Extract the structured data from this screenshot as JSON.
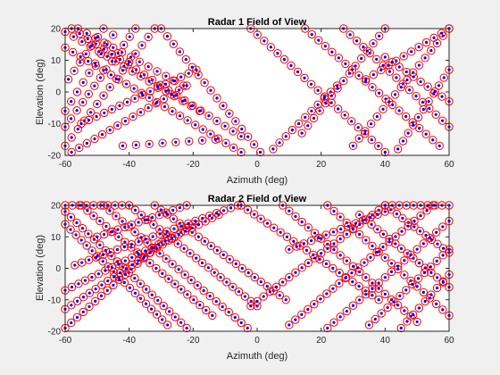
{
  "chart_data": [
    {
      "type": "scatter",
      "title": "Radar 1 Field of View",
      "xlabel": "Azimuth (deg)",
      "ylabel": "Elevation (deg)",
      "xlim": [
        -60,
        60
      ],
      "ylim": [
        -20,
        20
      ],
      "xticks": [
        -60,
        -40,
        -20,
        0,
        20,
        40,
        60
      ],
      "yticks": [
        -20,
        -10,
        0,
        10,
        20
      ],
      "grid": false,
      "marker_colors": {
        "circle": "#ff0000",
        "dot": "#0000ff"
      },
      "lines": [
        {
          "x0": -60,
          "y0": 14,
          "x1": -5,
          "y1": -19,
          "n": 24
        },
        {
          "x0": -58,
          "y0": 20,
          "x1": -5,
          "y1": -14,
          "n": 22
        },
        {
          "x0": -60,
          "y0": 19,
          "x1": -18,
          "y1": -6,
          "n": 17
        },
        {
          "x0": -56,
          "y0": 20,
          "x1": -23,
          "y1": 2,
          "n": 13
        },
        {
          "x0": -60,
          "y0": -17,
          "x1": -32,
          "y1": 20,
          "n": 15
        },
        {
          "x0": -60,
          "y0": -11,
          "x1": -38,
          "y1": 20,
          "n": 13
        },
        {
          "x0": -58,
          "y0": -19,
          "x1": -22,
          "y1": 2,
          "n": 16
        },
        {
          "x0": -55,
          "y0": -10,
          "x1": -19,
          "y1": 7,
          "n": 16
        },
        {
          "x0": -60,
          "y0": -6,
          "x1": -45,
          "y1": 18,
          "n": 9
        },
        {
          "x0": -59,
          "y0": 4,
          "x1": -48,
          "y1": 20,
          "n": 7
        },
        {
          "x0": -30,
          "y0": 20,
          "x1": 1,
          "y1": -19,
          "n": 17
        },
        {
          "x0": -2,
          "y0": 20,
          "x1": 40,
          "y1": -19,
          "n": 21
        },
        {
          "x0": 15,
          "y0": 20,
          "x1": 57,
          "y1": -17,
          "n": 21
        },
        {
          "x0": 27,
          "y0": 20,
          "x1": 60,
          "y1": -11,
          "n": 17
        },
        {
          "x0": 5,
          "y0": -18,
          "x1": 25,
          "y1": 2,
          "n": 11
        },
        {
          "x0": 14,
          "y0": -13,
          "x1": 40,
          "y1": 20,
          "n": 15
        },
        {
          "x0": 30,
          "y0": -17,
          "x1": 60,
          "y1": 20,
          "n": 17
        },
        {
          "x0": 44,
          "y0": -18,
          "x1": 60,
          "y1": 7,
          "n": 11
        },
        {
          "x0": 34,
          "y0": 4,
          "x1": 60,
          "y1": 20,
          "n": 12
        },
        {
          "x0": 40,
          "y0": 11,
          "x1": 60,
          "y1": -3,
          "n": 10
        },
        {
          "x0": -42,
          "y0": -17,
          "x1": -13,
          "y1": -15,
          "n": 8
        }
      ]
    },
    {
      "type": "scatter",
      "title": "Radar 2 Field of View",
      "xlabel": "Azimuth (deg)",
      "ylabel": "Elevation (deg)",
      "xlim": [
        -60,
        60
      ],
      "ylim": [
        -20,
        20
      ],
      "xticks": [
        -60,
        -40,
        -20,
        0,
        20,
        40,
        60
      ],
      "yticks": [
        -20,
        -10,
        0,
        10,
        20
      ],
      "grid": false,
      "marker_colors": {
        "circle": "#ff0000",
        "dot": "#0000ff"
      },
      "lines": [
        {
          "x0": -60,
          "y0": 18,
          "x1": -22,
          "y1": -19,
          "n": 22
        },
        {
          "x0": -60,
          "y0": 14,
          "x1": -28,
          "y1": -18,
          "n": 20
        },
        {
          "x0": -55,
          "y0": 20,
          "x1": -14,
          "y1": -15,
          "n": 22
        },
        {
          "x0": -48,
          "y0": 20,
          "x1": -3,
          "y1": -19,
          "n": 24
        },
        {
          "x0": -40,
          "y0": 20,
          "x1": 0,
          "y1": -12,
          "n": 22
        },
        {
          "x0": -32,
          "y0": 20,
          "x1": 9,
          "y1": -10,
          "n": 22
        },
        {
          "x0": -60,
          "y0": -19,
          "x1": -28,
          "y1": 10,
          "n": 18
        },
        {
          "x0": -60,
          "y0": -13,
          "x1": -20,
          "y1": 14,
          "n": 22
        },
        {
          "x0": -60,
          "y0": -7,
          "x1": -12,
          "y1": 17,
          "n": 24
        },
        {
          "x0": -57,
          "y0": 1,
          "x1": -6,
          "y1": 20,
          "n": 24
        },
        {
          "x0": -50,
          "y0": 10,
          "x1": -22,
          "y1": 20,
          "n": 14
        },
        {
          "x0": -60,
          "y0": 20,
          "x1": -40,
          "y1": 20,
          "n": 10
        },
        {
          "x0": -5,
          "y0": 20,
          "x1": 38,
          "y1": -10,
          "n": 22
        },
        {
          "x0": 8,
          "y0": 20,
          "x1": 50,
          "y1": -17,
          "n": 22
        },
        {
          "x0": 22,
          "y0": 20,
          "x1": 60,
          "y1": -15,
          "n": 20
        },
        {
          "x0": 32,
          "y0": 17,
          "x1": 60,
          "y1": -6,
          "n": 16
        },
        {
          "x0": 40,
          "y0": 20,
          "x1": 60,
          "y1": 5,
          "n": 12
        },
        {
          "x0": -2,
          "y0": -12,
          "x1": 40,
          "y1": 20,
          "n": 22
        },
        {
          "x0": 10,
          "y0": -18,
          "x1": 55,
          "y1": 20,
          "n": 24
        },
        {
          "x0": 22,
          "y0": -19,
          "x1": 60,
          "y1": 15,
          "n": 20
        },
        {
          "x0": 35,
          "y0": -18,
          "x1": 60,
          "y1": 6,
          "n": 14
        },
        {
          "x0": 45,
          "y0": -19,
          "x1": 60,
          "y1": -2,
          "n": 9
        },
        {
          "x0": 10,
          "y0": 6,
          "x1": 40,
          "y1": 18,
          "n": 14
        },
        {
          "x0": 40,
          "y0": 20,
          "x1": 60,
          "y1": 20,
          "n": 10
        }
      ]
    }
  ]
}
